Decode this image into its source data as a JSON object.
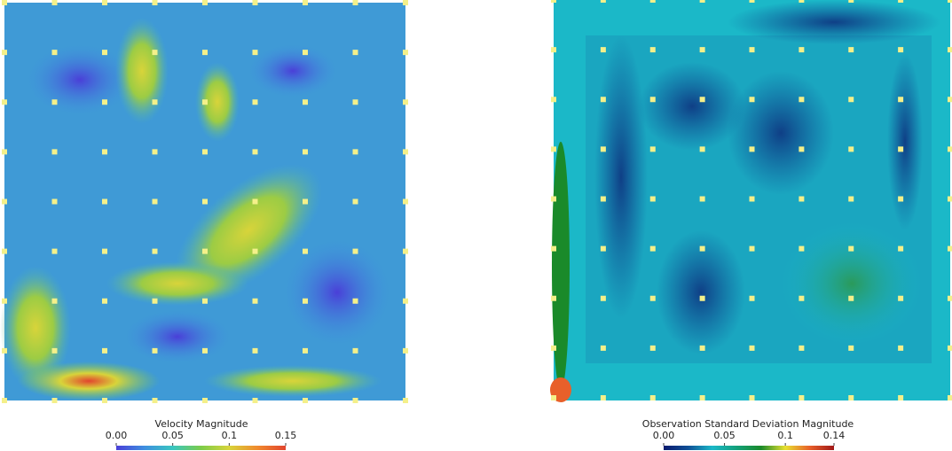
{
  "chart_data": [
    {
      "type": "heatmap",
      "colorbar_title": "Velocity Magnitude",
      "clim": [
        0,
        0.15
      ],
      "cticks": [
        {
          "value": 0,
          "label": "0.00"
        },
        0.05,
        0.1,
        0.15
      ],
      "colorscale": [
        "#4a3fd8",
        "#3f8fe0",
        "#39c6c0",
        "#7ccc4a",
        "#d8d43a",
        "#f08a2e",
        "#e2442e"
      ]
    },
    {
      "type": "heatmap",
      "colorbar_title": "Observation Standard Deviation Magnitude",
      "clim": [
        0,
        0.14
      ],
      "cticks": [
        {
          "value": 0,
          "label": "0.00"
        },
        0.05,
        0.1,
        0.14
      ],
      "colorscale": [
        "#0a1a6e",
        "#0f4f96",
        "#1bb8c8",
        "#13a07a",
        "#1a8a2a",
        "#e8e030",
        "#e8602a",
        "#a01818"
      ]
    }
  ]
}
